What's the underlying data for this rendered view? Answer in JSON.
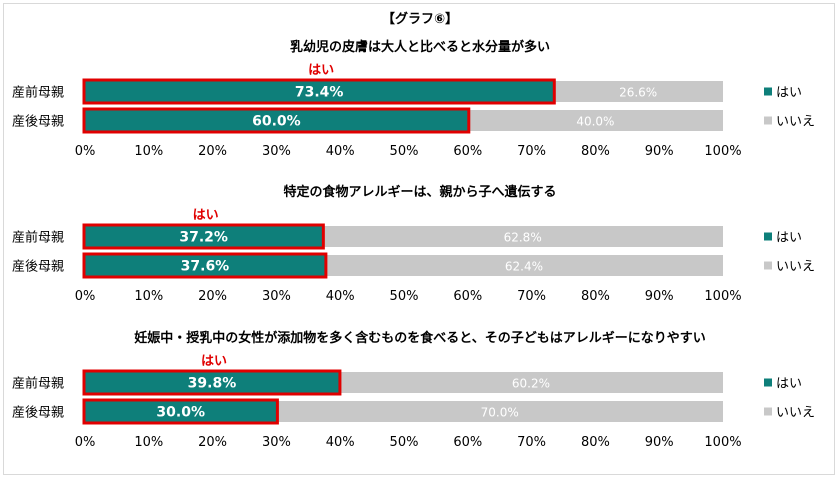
{
  "title": "【グラフ⑥】",
  "colors": {
    "yes": "#0e7f7a",
    "no": "#c8c8c8",
    "highlight": "#e00000"
  },
  "chart_data": [
    {
      "type": "bar",
      "orientation": "horizontal",
      "stacked": true,
      "title": "乳幼児の皮膚は大人と比べると水分量が多い",
      "highlight_label": "はい",
      "categories": [
        "産前母親",
        "産後母親"
      ],
      "series": [
        {
          "name": "はい",
          "values": [
            73.4,
            60.0
          ],
          "labels": [
            "73.4%",
            "60.0%"
          ]
        },
        {
          "name": "いいえ",
          "values": [
            26.6,
            40.0
          ],
          "labels": [
            "26.6%",
            "40.0%"
          ]
        }
      ],
      "xlim": [
        0,
        100
      ],
      "xticks": [
        "0%",
        "10%",
        "20%",
        "30%",
        "40%",
        "50%",
        "60%",
        "70%",
        "80%",
        "90%",
        "100%"
      ],
      "legend": "right"
    },
    {
      "type": "bar",
      "orientation": "horizontal",
      "stacked": true,
      "title": "特定の食物アレルギーは、親から子へ遺伝する",
      "highlight_label": "はい",
      "categories": [
        "産前母親",
        "産後母親"
      ],
      "series": [
        {
          "name": "はい",
          "values": [
            37.2,
            37.6
          ],
          "labels": [
            "37.2%",
            "37.6%"
          ]
        },
        {
          "name": "いいえ",
          "values": [
            62.8,
            62.4
          ],
          "labels": [
            "62.8%",
            "62.4%"
          ]
        }
      ],
      "xlim": [
        0,
        100
      ],
      "xticks": [
        "0%",
        "10%",
        "20%",
        "30%",
        "40%",
        "50%",
        "60%",
        "70%",
        "80%",
        "90%",
        "100%"
      ],
      "legend": "right"
    },
    {
      "type": "bar",
      "orientation": "horizontal",
      "stacked": true,
      "title": "妊娠中・授乳中の女性が添加物を多く含むものを食べると、その子どもはアレルギーになりやすい",
      "highlight_label": "はい",
      "categories": [
        "産前母親",
        "産後母親"
      ],
      "series": [
        {
          "name": "はい",
          "values": [
            39.8,
            30.0
          ],
          "labels": [
            "39.8%",
            "30.0%"
          ]
        },
        {
          "name": "いいえ",
          "values": [
            60.2,
            70.0
          ],
          "labels": [
            "60.2%",
            "70.0%"
          ]
        }
      ],
      "xlim": [
        0,
        100
      ],
      "xticks": [
        "0%",
        "10%",
        "20%",
        "30%",
        "40%",
        "50%",
        "60%",
        "70%",
        "80%",
        "90%",
        "100%"
      ],
      "legend": "right"
    }
  ]
}
